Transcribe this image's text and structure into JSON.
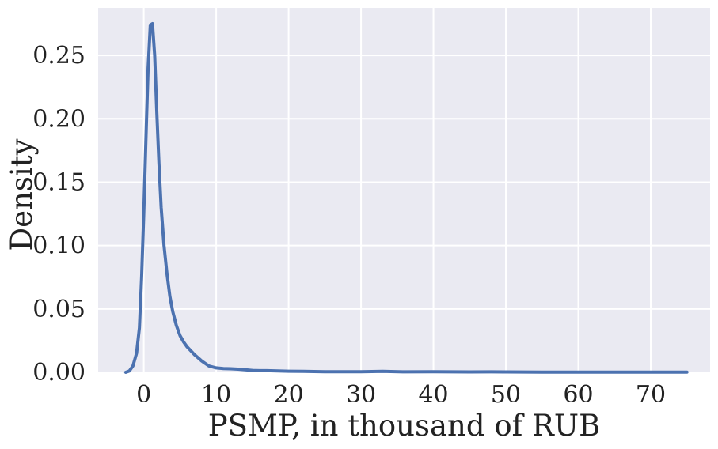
{
  "chart_data": {
    "type": "line",
    "title": "",
    "xlabel": "PSMP, in thousand of RUB",
    "ylabel": "Density",
    "xlim": [
      -6.3,
      78.2
    ],
    "ylim": [
      0,
      0.2875
    ],
    "xticks": [
      0,
      10,
      20,
      30,
      40,
      50,
      60,
      70
    ],
    "yticks": [
      0.0,
      0.05,
      0.1,
      0.15,
      0.2,
      0.25
    ],
    "xtick_labels": [
      "0",
      "10",
      "20",
      "30",
      "40",
      "50",
      "60",
      "70"
    ],
    "ytick_labels": [
      "0.00",
      "0.05",
      "0.10",
      "0.15",
      "0.20",
      "0.25"
    ],
    "grid": true,
    "background_color": "#eaeaf2",
    "grid_color": "#ffffff",
    "series": [
      {
        "color": "#4c72b0",
        "x": [
          -2.5,
          -2.0,
          -1.5,
          -1.0,
          -0.6,
          -0.3,
          0.0,
          0.3,
          0.6,
          0.9,
          1.2,
          1.5,
          1.8,
          2.1,
          2.4,
          2.8,
          3.2,
          3.6,
          4.0,
          4.5,
          5.0,
          5.5,
          6.0,
          7.0,
          8.0,
          9.0,
          10.0,
          11.0,
          12.0,
          13.0,
          14.0,
          15.0,
          16.0,
          17.0,
          18.0,
          20.0,
          22.0,
          25.0,
          30.0,
          33.0,
          36.0,
          40.0,
          45.0,
          48.0,
          50.0,
          55.0,
          60.0,
          65.0,
          70.0,
          75.0
        ],
        "y": [
          0.0,
          0.001,
          0.005,
          0.015,
          0.035,
          0.075,
          0.125,
          0.185,
          0.24,
          0.274,
          0.275,
          0.25,
          0.205,
          0.165,
          0.13,
          0.1,
          0.078,
          0.06,
          0.048,
          0.037,
          0.029,
          0.024,
          0.02,
          0.014,
          0.009,
          0.005,
          0.0035,
          0.003,
          0.0028,
          0.0025,
          0.002,
          0.0015,
          0.0013,
          0.0013,
          0.0012,
          0.0009,
          0.0008,
          0.0005,
          0.0005,
          0.0008,
          0.0004,
          0.0005,
          0.0003,
          0.0004,
          0.0003,
          0.0002,
          0.0002,
          0.0002,
          0.0002,
          0.0002
        ]
      }
    ]
  }
}
